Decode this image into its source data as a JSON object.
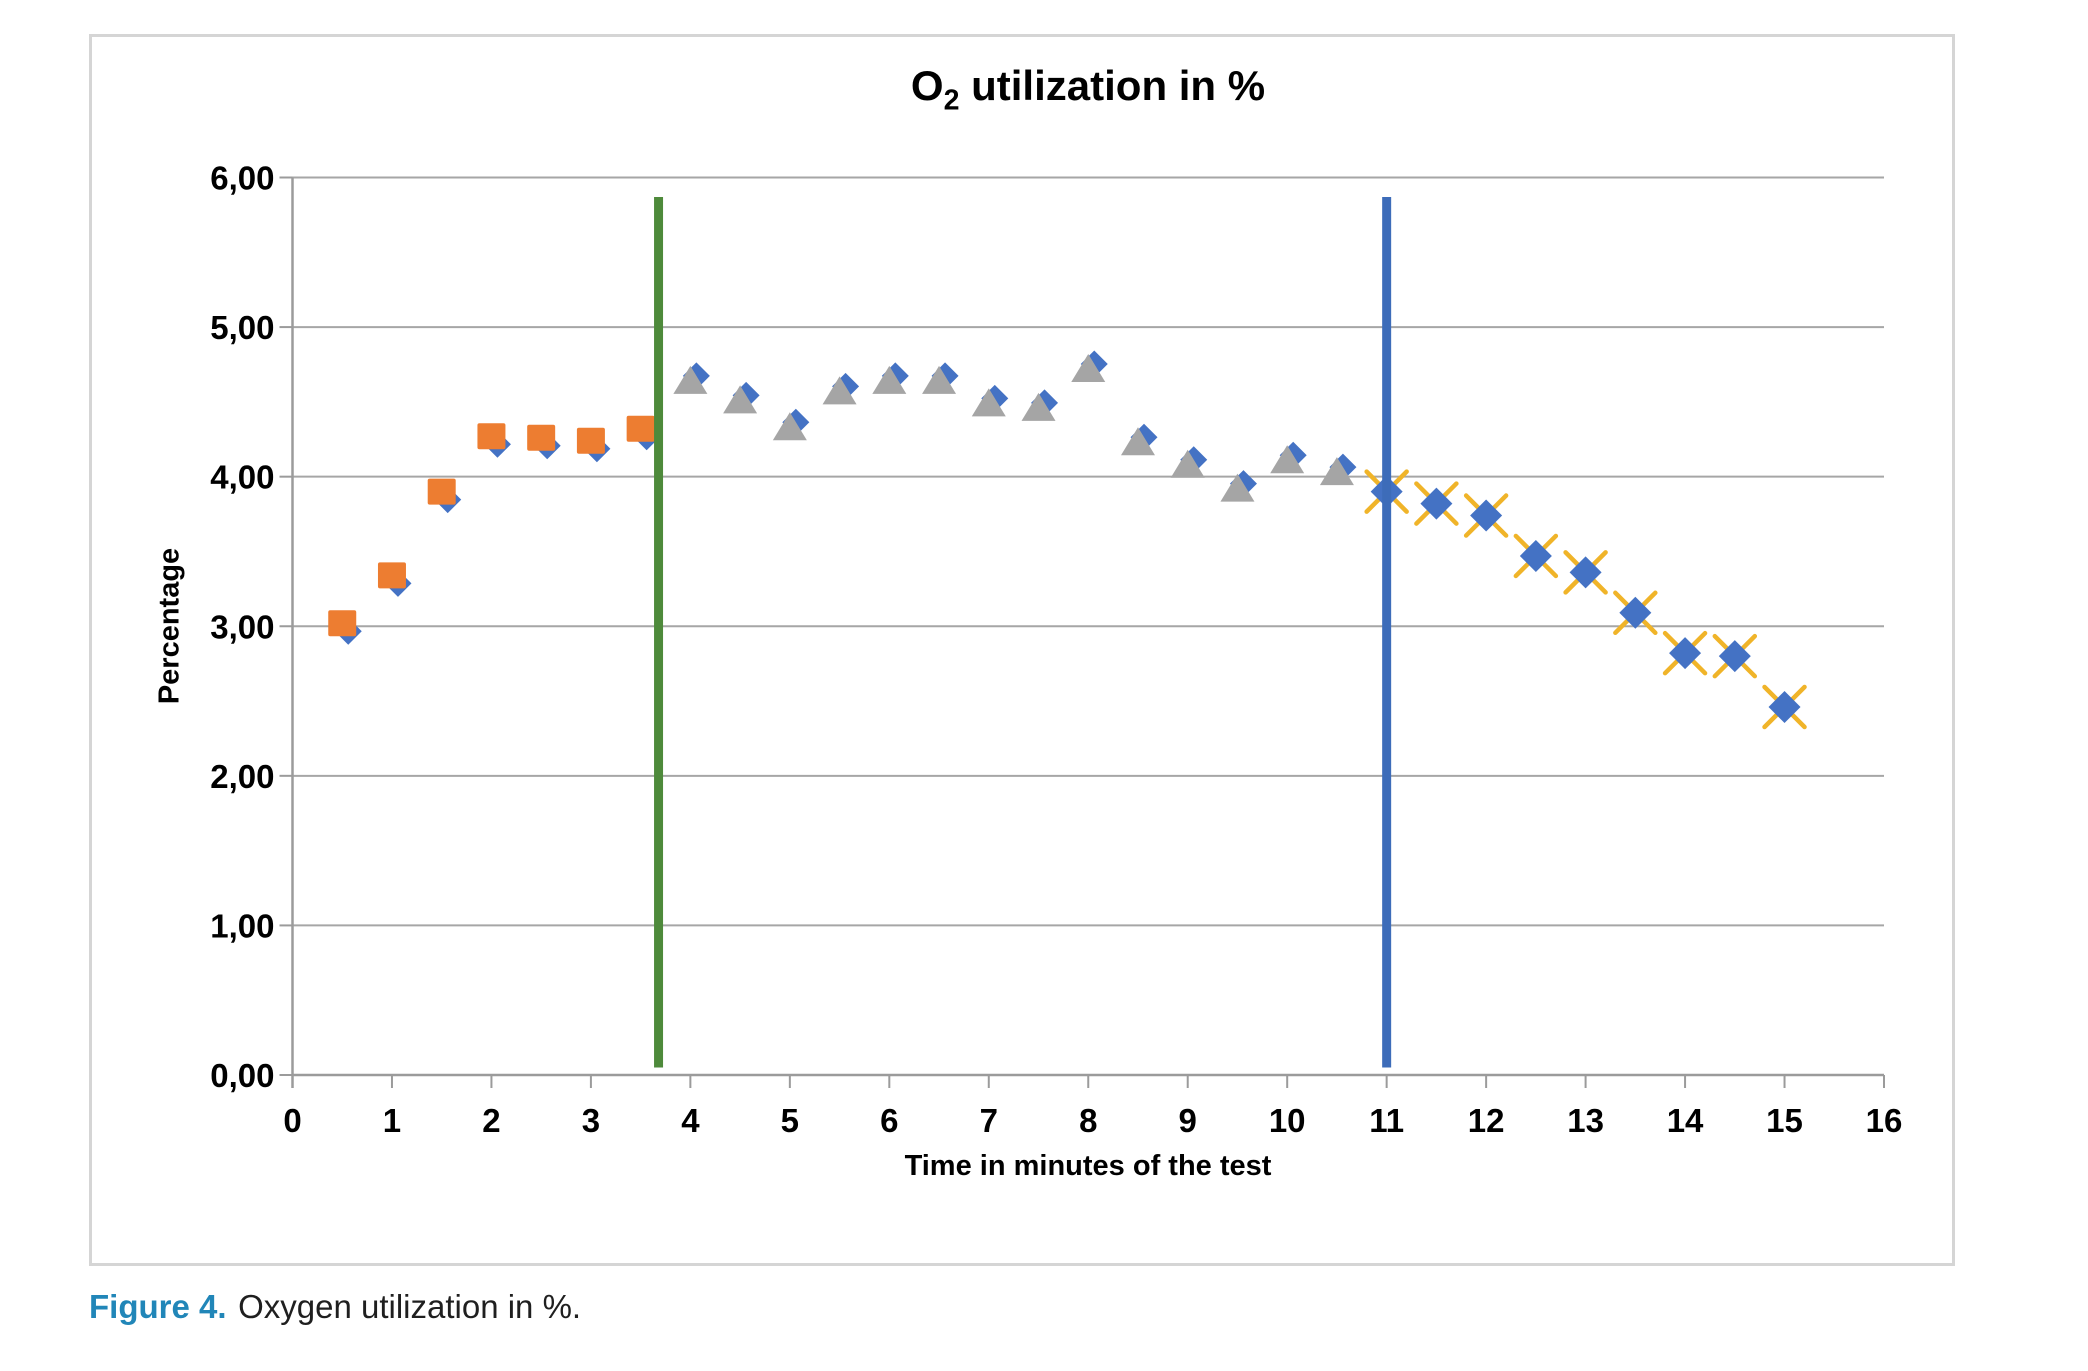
{
  "figure": {
    "caption_label": "Figure 4.",
    "caption_text": "Oxygen utilization in %."
  },
  "chart_data": {
    "type": "scatter",
    "title": {
      "prefix": "O",
      "subscript": "2",
      "suffix": " utilization in %"
    },
    "xlabel": "Time in minutes of the test",
    "ylabel": "Percentage",
    "xlim": [
      0,
      16
    ],
    "ylim": [
      0,
      6
    ],
    "grid": "horizontal",
    "legend": "none",
    "background": "#FFFFFF",
    "grid_color": "#A6A6A6",
    "axis_color": "#9B9B9B",
    "tick_label_color": "#000000",
    "x_ticks": [
      {
        "value": 0,
        "label": "0"
      },
      {
        "value": 1,
        "label": "1"
      },
      {
        "value": 2,
        "label": "2"
      },
      {
        "value": 3,
        "label": "3"
      },
      {
        "value": 4,
        "label": "4"
      },
      {
        "value": 5,
        "label": "5"
      },
      {
        "value": 6,
        "label": "6"
      },
      {
        "value": 7,
        "label": "7"
      },
      {
        "value": 8,
        "label": "8"
      },
      {
        "value": 9,
        "label": "9"
      },
      {
        "value": 10,
        "label": "10"
      },
      {
        "value": 11,
        "label": "11"
      },
      {
        "value": 12,
        "label": "12"
      },
      {
        "value": 13,
        "label": "13"
      },
      {
        "value": 14,
        "label": "14"
      },
      {
        "value": 15,
        "label": "15"
      },
      {
        "value": 16,
        "label": "16"
      }
    ],
    "y_ticks": [
      {
        "value": 0,
        "label": "0,00"
      },
      {
        "value": 1,
        "label": "1,00"
      },
      {
        "value": 2,
        "label": "2,00"
      },
      {
        "value": 3,
        "label": "3,00"
      },
      {
        "value": 4,
        "label": "4,00"
      },
      {
        "value": 5,
        "label": "5,00"
      },
      {
        "value": 6,
        "label": "6,00"
      }
    ],
    "series": [
      {
        "name": "orange-square-points",
        "marker_front": "square",
        "marker_back": "diamond",
        "front_color": "#ED7D31",
        "back_color": "#4472C4",
        "points": [
          [
            0.5,
            3.02
          ],
          [
            1,
            3.34
          ],
          [
            1.5,
            3.9
          ],
          [
            2,
            4.27
          ],
          [
            2.5,
            4.26
          ],
          [
            3,
            4.24
          ],
          [
            3.5,
            4.32
          ]
        ]
      },
      {
        "name": "grey-triangle-points",
        "marker_front": "triangle",
        "marker_back": "diamond",
        "front_color": "#A5A5A5",
        "back_color": "#4472C4",
        "points": [
          [
            4,
            4.64
          ],
          [
            4.5,
            4.51
          ],
          [
            5,
            4.33
          ],
          [
            5.5,
            4.57
          ],
          [
            6,
            4.64
          ],
          [
            6.5,
            4.64
          ],
          [
            7,
            4.49
          ],
          [
            7.5,
            4.46
          ],
          [
            8,
            4.72
          ],
          [
            8.5,
            4.23
          ],
          [
            9,
            4.08
          ],
          [
            9.5,
            3.92
          ],
          [
            10,
            4.11
          ],
          [
            10.5,
            4.03
          ]
        ]
      },
      {
        "name": "blue-diamond-x-points",
        "marker_front": "diamond",
        "marker_back": "x-cross",
        "front_color": "#4472C4",
        "back_color": "#F0B429",
        "points": [
          [
            11,
            3.9
          ],
          [
            11.5,
            3.82
          ],
          [
            12,
            3.74
          ],
          [
            12.5,
            3.47
          ],
          [
            13,
            3.36
          ],
          [
            13.5,
            3.09
          ],
          [
            14,
            2.82
          ],
          [
            14.5,
            2.8
          ],
          [
            15,
            2.46
          ]
        ]
      }
    ],
    "vlines": [
      {
        "x": 3.68,
        "color": "#4E8A3B",
        "y_from": 0.05,
        "y_to": 5.87
      },
      {
        "x": 11,
        "color": "#3D6CB9",
        "y_from": 0.05,
        "y_to": 5.87
      }
    ]
  }
}
